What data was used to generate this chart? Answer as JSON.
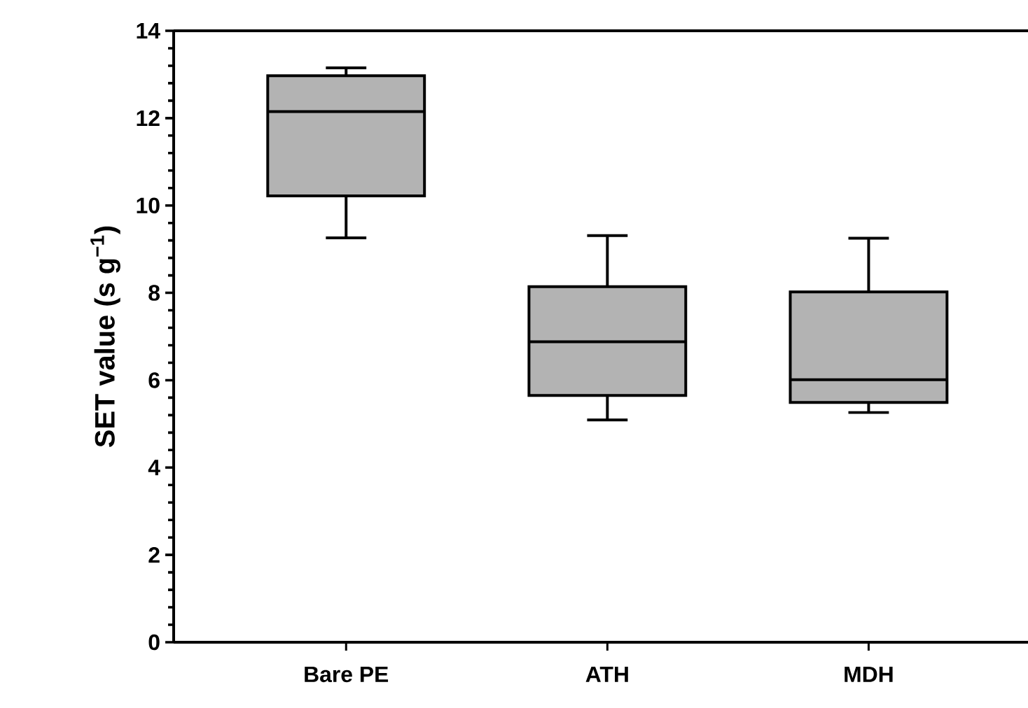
{
  "chart_data": {
    "type": "box",
    "ylabel": "SET value (s g$^{−1}$)",
    "categories": [
      "Bare PE",
      "ATH",
      "MDH"
    ],
    "color": "#b3b3b3",
    "boxes": [
      {
        "low": 9.26,
        "q1": 10.22,
        "median": 12.15,
        "q3": 12.97,
        "high": 13.15
      },
      {
        "low": 5.09,
        "q1": 5.65,
        "median": 6.88,
        "q3": 8.14,
        "high": 9.31
      },
      {
        "low": 5.26,
        "q1": 5.49,
        "median": 6.01,
        "q3": 8.02,
        "high": 9.25
      }
    ],
    "ylim": [
      0,
      14
    ],
    "yticks": [
      0,
      2,
      4,
      6,
      8,
      10,
      12,
      14
    ]
  }
}
